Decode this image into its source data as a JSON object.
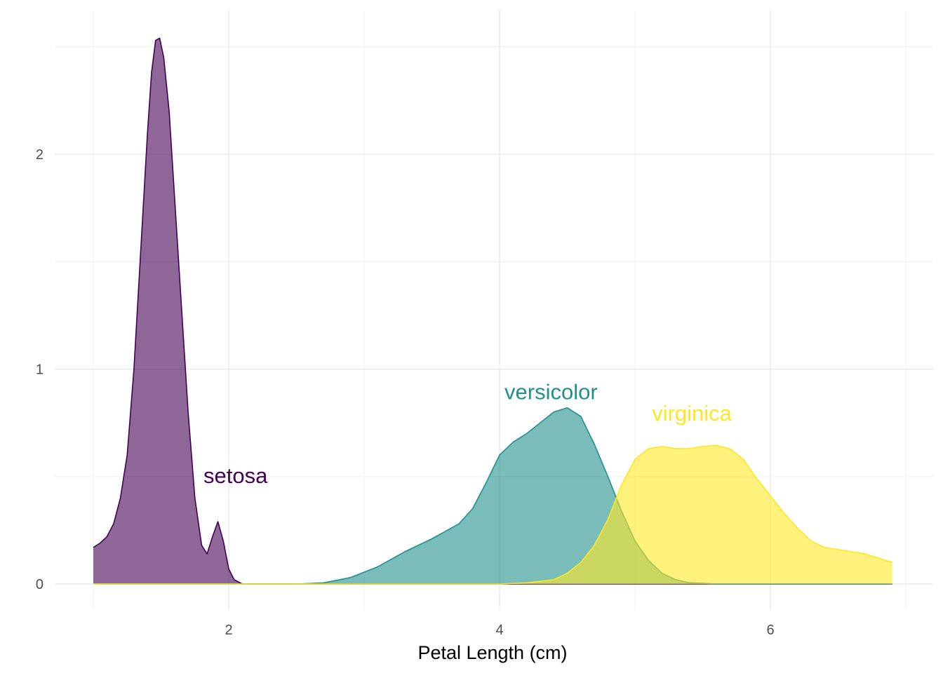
{
  "chart_data": {
    "type": "area",
    "title": "",
    "xlabel": "Petal Length (cm)",
    "ylabel": "",
    "xlim": [
      0.95,
      6.9
    ],
    "ylim": [
      0,
      2.55
    ],
    "x_ticks": [
      {
        "value": 2,
        "label": "2"
      },
      {
        "value": 4,
        "label": "4"
      },
      {
        "value": 6,
        "label": "6"
      }
    ],
    "y_ticks": [
      {
        "value": 0,
        "label": "0"
      },
      {
        "value": 1,
        "label": "1"
      },
      {
        "value": 2,
        "label": "2"
      }
    ],
    "grid": true,
    "legend": "none",
    "series": [
      {
        "name": "setosa",
        "label": "setosa",
        "color": "#440154",
        "label_at": [
          2.05,
          0.47
        ],
        "points": [
          [
            1.0,
            0.17
          ],
          [
            1.05,
            0.19
          ],
          [
            1.1,
            0.22
          ],
          [
            1.15,
            0.28
          ],
          [
            1.2,
            0.4
          ],
          [
            1.25,
            0.6
          ],
          [
            1.3,
            1.0
          ],
          [
            1.35,
            1.55
          ],
          [
            1.4,
            2.1
          ],
          [
            1.43,
            2.38
          ],
          [
            1.46,
            2.53
          ],
          [
            1.49,
            2.54
          ],
          [
            1.52,
            2.45
          ],
          [
            1.56,
            2.2
          ],
          [
            1.6,
            1.8
          ],
          [
            1.65,
            1.3
          ],
          [
            1.7,
            0.8
          ],
          [
            1.75,
            0.4
          ],
          [
            1.8,
            0.18
          ],
          [
            1.84,
            0.14
          ],
          [
            1.88,
            0.22
          ],
          [
            1.92,
            0.29
          ],
          [
            1.96,
            0.2
          ],
          [
            2.0,
            0.07
          ],
          [
            2.04,
            0.02
          ],
          [
            2.1,
            0.0
          ],
          [
            6.9,
            0.0
          ]
        ]
      },
      {
        "name": "versicolor",
        "label": "versicolor",
        "color": "#21908C",
        "label_at": [
          4.38,
          0.86
        ],
        "points": [
          [
            1.0,
            0.0
          ],
          [
            2.5,
            0.0
          ],
          [
            2.7,
            0.005
          ],
          [
            2.9,
            0.03
          ],
          [
            3.1,
            0.08
          ],
          [
            3.3,
            0.15
          ],
          [
            3.5,
            0.21
          ],
          [
            3.7,
            0.28
          ],
          [
            3.8,
            0.35
          ],
          [
            3.9,
            0.47
          ],
          [
            4.0,
            0.6
          ],
          [
            4.1,
            0.66
          ],
          [
            4.2,
            0.7
          ],
          [
            4.3,
            0.75
          ],
          [
            4.4,
            0.8
          ],
          [
            4.5,
            0.82
          ],
          [
            4.6,
            0.78
          ],
          [
            4.7,
            0.65
          ],
          [
            4.8,
            0.5
          ],
          [
            4.9,
            0.34
          ],
          [
            5.0,
            0.2
          ],
          [
            5.1,
            0.11
          ],
          [
            5.2,
            0.05
          ],
          [
            5.3,
            0.02
          ],
          [
            5.4,
            0.006
          ],
          [
            5.6,
            0.0
          ],
          [
            6.9,
            0.0
          ]
        ]
      },
      {
        "name": "virginica",
        "label": "virginica",
        "color": "#FDE725",
        "label_at": [
          5.42,
          0.76
        ],
        "points": [
          [
            1.0,
            0.0
          ],
          [
            4.0,
            0.0
          ],
          [
            4.2,
            0.005
          ],
          [
            4.4,
            0.02
          ],
          [
            4.5,
            0.05
          ],
          [
            4.6,
            0.1
          ],
          [
            4.7,
            0.18
          ],
          [
            4.8,
            0.3
          ],
          [
            4.9,
            0.46
          ],
          [
            5.0,
            0.58
          ],
          [
            5.1,
            0.63
          ],
          [
            5.2,
            0.64
          ],
          [
            5.3,
            0.63
          ],
          [
            5.4,
            0.63
          ],
          [
            5.5,
            0.64
          ],
          [
            5.6,
            0.645
          ],
          [
            5.7,
            0.63
          ],
          [
            5.8,
            0.58
          ],
          [
            5.9,
            0.49
          ],
          [
            6.0,
            0.41
          ],
          [
            6.1,
            0.33
          ],
          [
            6.2,
            0.26
          ],
          [
            6.3,
            0.2
          ],
          [
            6.4,
            0.17
          ],
          [
            6.5,
            0.16
          ],
          [
            6.6,
            0.15
          ],
          [
            6.7,
            0.14
          ],
          [
            6.8,
            0.12
          ],
          [
            6.9,
            0.1
          ]
        ]
      }
    ]
  }
}
